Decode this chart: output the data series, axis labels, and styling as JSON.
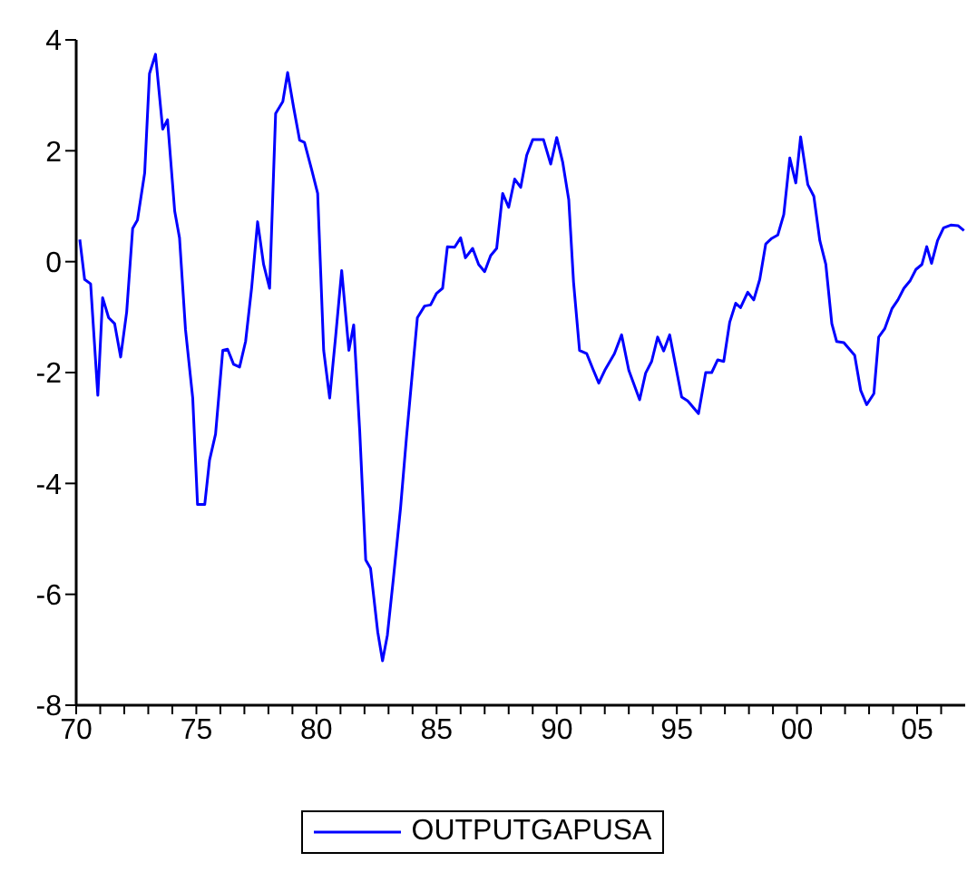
{
  "chart_data": {
    "type": "line",
    "x": [
      1970.15,
      1970.35,
      1970.6,
      1970.9,
      1971.1,
      1971.35,
      1971.6,
      1971.85,
      1972.1,
      1972.35,
      1972.55,
      1972.85,
      1973.05,
      1973.3,
      1973.6,
      1973.8,
      1974.1,
      1974.3,
      1974.55,
      1974.85,
      1975.05,
      1975.35,
      1975.55,
      1975.8,
      1976.1,
      1976.3,
      1976.55,
      1976.8,
      1977.05,
      1977.3,
      1977.55,
      1977.8,
      1978.05,
      1978.3,
      1978.6,
      1978.8,
      1979.05,
      1979.3,
      1979.5,
      1979.8,
      1980.05,
      1980.3,
      1980.55,
      1980.8,
      1981.05,
      1981.35,
      1981.55,
      1981.8,
      1982.05,
      1982.25,
      1982.55,
      1982.75,
      1982.95,
      1983.2,
      1983.5,
      1983.75,
      1984.2,
      1984.5,
      1984.75,
      1985.0,
      1985.25,
      1985.45,
      1985.75,
      1986.0,
      1986.2,
      1986.5,
      1986.75,
      1987.0,
      1987.25,
      1987.5,
      1987.75,
      1988.0,
      1988.25,
      1988.5,
      1988.75,
      1989.0,
      1989.45,
      1989.75,
      1990.0,
      1990.25,
      1990.5,
      1990.7,
      1990.95,
      1991.25,
      1991.5,
      1991.75,
      1992.0,
      1992.4,
      1992.7,
      1993.0,
      1993.45,
      1993.7,
      1993.95,
      1994.2,
      1994.45,
      1994.7,
      1995.2,
      1995.45,
      1995.9,
      1996.2,
      1996.45,
      1996.7,
      1996.95,
      1997.2,
      1997.45,
      1997.65,
      1997.95,
      1998.2,
      1998.45,
      1998.7,
      1998.95,
      1999.2,
      1999.45,
      1999.7,
      1999.95,
      2000.15,
      2000.45,
      2000.7,
      2000.95,
      2001.2,
      2001.45,
      2001.65,
      2001.95,
      2002.4,
      2002.65,
      2002.9,
      2003.2,
      2003.4,
      2003.65,
      2003.95,
      2004.2,
      2004.45,
      2004.7,
      2004.95,
      2005.2,
      2005.4,
      2005.6,
      2005.85,
      2006.1,
      2006.4,
      2006.7,
      2006.95
    ],
    "series": [
      {
        "name": "OUTPUTGAPUSA",
        "color": "#0000ff",
        "values": [
          0.4,
          -0.32,
          -0.4,
          -2.41,
          -0.65,
          -1.01,
          -1.12,
          -1.72,
          -0.91,
          0.6,
          0.75,
          1.6,
          3.39,
          3.74,
          2.39,
          2.56,
          0.91,
          0.43,
          -1.23,
          -2.46,
          -4.38,
          -4.38,
          -3.58,
          -3.11,
          -1.6,
          -1.58,
          -1.85,
          -1.9,
          -1.44,
          -0.48,
          0.72,
          -0.05,
          -0.48,
          2.67,
          2.89,
          3.41,
          2.78,
          2.19,
          2.15,
          1.66,
          1.23,
          -1.6,
          -2.46,
          -1.34,
          -0.16,
          -1.6,
          -1.14,
          -3.05,
          -5.38,
          -5.53,
          -6.68,
          -7.2,
          -6.74,
          -5.72,
          -4.44,
          -3.15,
          -1.01,
          -0.8,
          -0.78,
          -0.57,
          -0.48,
          0.27,
          0.26,
          0.43,
          0.07,
          0.24,
          -0.05,
          -0.18,
          0.11,
          0.24,
          1.23,
          0.98,
          1.49,
          1.34,
          1.92,
          2.2,
          2.2,
          1.76,
          2.24,
          1.79,
          1.12,
          -0.37,
          -1.6,
          -1.66,
          -1.93,
          -2.19,
          -1.96,
          -1.66,
          -1.32,
          -1.96,
          -2.49,
          -2.01,
          -1.8,
          -1.36,
          -1.61,
          -1.32,
          -2.44,
          -2.51,
          -2.74,
          -2.0,
          -2.0,
          -1.77,
          -1.8,
          -1.09,
          -0.75,
          -0.83,
          -0.55,
          -0.69,
          -0.32,
          0.32,
          0.42,
          0.48,
          0.85,
          1.87,
          1.42,
          2.25,
          1.39,
          1.18,
          0.38,
          -0.05,
          -1.12,
          -1.44,
          -1.46,
          -1.69,
          -2.32,
          -2.58,
          -2.38,
          -1.36,
          -1.21,
          -0.85,
          -0.69,
          -0.48,
          -0.35,
          -0.14,
          -0.05,
          0.27,
          -0.03,
          0.38,
          0.61,
          0.66,
          0.65,
          0.56
        ]
      }
    ],
    "xlim": [
      1970,
      2007
    ],
    "xticks": [
      {
        "value": 1970,
        "label": "70"
      },
      {
        "value": 1971,
        "label": null
      },
      {
        "value": 1972,
        "label": null
      },
      {
        "value": 1973,
        "label": null
      },
      {
        "value": 1974,
        "label": null
      },
      {
        "value": 1975,
        "label": "75"
      },
      {
        "value": 1976,
        "label": null
      },
      {
        "value": 1977,
        "label": null
      },
      {
        "value": 1978,
        "label": null
      },
      {
        "value": 1979,
        "label": null
      },
      {
        "value": 1980,
        "label": "80"
      },
      {
        "value": 1981,
        "label": null
      },
      {
        "value": 1982,
        "label": null
      },
      {
        "value": 1983,
        "label": null
      },
      {
        "value": 1984,
        "label": null
      },
      {
        "value": 1985,
        "label": "85"
      },
      {
        "value": 1986,
        "label": null
      },
      {
        "value": 1987,
        "label": null
      },
      {
        "value": 1988,
        "label": null
      },
      {
        "value": 1989,
        "label": null
      },
      {
        "value": 1990,
        "label": "90"
      },
      {
        "value": 1991,
        "label": null
      },
      {
        "value": 1992,
        "label": null
      },
      {
        "value": 1993,
        "label": null
      },
      {
        "value": 1994,
        "label": null
      },
      {
        "value": 1995,
        "label": "95"
      },
      {
        "value": 1996,
        "label": null
      },
      {
        "value": 1997,
        "label": null
      },
      {
        "value": 1998,
        "label": null
      },
      {
        "value": 1999,
        "label": null
      },
      {
        "value": 2000,
        "label": "00"
      },
      {
        "value": 2001,
        "label": null
      },
      {
        "value": 2002,
        "label": null
      },
      {
        "value": 2003,
        "label": null
      },
      {
        "value": 2004,
        "label": null
      },
      {
        "value": 2005,
        "label": "05"
      },
      {
        "value": 2006,
        "label": null
      }
    ],
    "ylim": [
      -8,
      4
    ],
    "yticks": [
      -8,
      -6,
      -4,
      -2,
      0,
      2,
      4
    ],
    "grid": false,
    "legend": "bottom",
    "marker": "none",
    "line_style": "solid"
  }
}
